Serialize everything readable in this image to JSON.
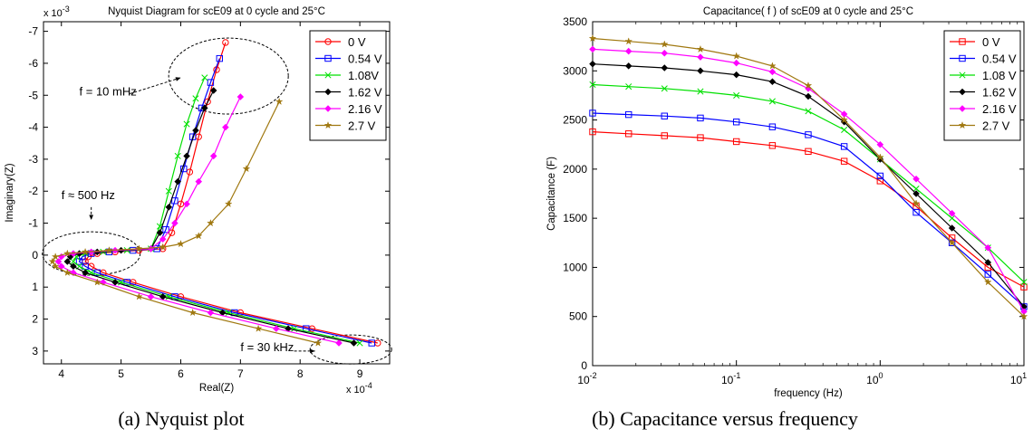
{
  "captions": [
    "(a) Nyquist plot",
    "(b) Capacitance versus frequency"
  ],
  "chart_data": [
    {
      "type": "line",
      "title": "Nyquist Diagram for scE09 at 0 cycle and 25°C",
      "xlabel": "Real(Z)",
      "ylabel": "Imaginary(Z)",
      "x_multiplier": "x 10",
      "x_exponent": "-4",
      "y_multiplier": "x 10",
      "y_exponent": "-3",
      "xlim": [
        3.7,
        9.5
      ],
      "ylim": [
        3.4,
        -7.3
      ],
      "y_reversed": true,
      "xticks": [
        4,
        5,
        6,
        7,
        8,
        9
      ],
      "yticks": [
        3,
        2,
        1,
        0,
        -1,
        -2,
        -3,
        -4,
        -5,
        -6,
        -7
      ],
      "legend_position": "top-right",
      "annotations": [
        {
          "text": "f = 10 mHz",
          "x": 4.3,
          "y": -5.0,
          "arrow_to": [
            6.0,
            -5.5
          ]
        },
        {
          "text": "f ≈ 500 Hz",
          "x": 4.0,
          "y": -1.75,
          "arrow_to": [
            4.5,
            -1.15
          ]
        },
        {
          "text": "f = 30 kHz",
          "x": 7.0,
          "y": 3.0,
          "arrow_to": [
            8.25,
            3.0
          ]
        }
      ],
      "series": [
        {
          "name": "0 V",
          "color": "#ff0000",
          "marker": "circle",
          "x": [
            9.3,
            8.2,
            7.0,
            6.0,
            5.2,
            4.7,
            4.5,
            4.4,
            4.45,
            4.6,
            4.9,
            5.3,
            5.7,
            5.85,
            6.0,
            6.15,
            6.3,
            6.45,
            6.6,
            6.75
          ],
          "y": [
            2.75,
            2.3,
            1.8,
            1.3,
            0.85,
            0.55,
            0.35,
            0.2,
            0.05,
            -0.05,
            -0.1,
            -0.15,
            -0.2,
            -0.7,
            -1.6,
            -2.6,
            -3.7,
            -4.8,
            -5.8,
            -6.65
          ]
        },
        {
          "name": "0.54 V",
          "color": "#0000ff",
          "marker": "square",
          "x": [
            9.2,
            8.1,
            6.9,
            5.9,
            5.1,
            4.6,
            4.4,
            4.3,
            4.35,
            4.5,
            4.8,
            5.2,
            5.6,
            5.75,
            5.9,
            6.05,
            6.2,
            6.35,
            6.5,
            6.65
          ],
          "y": [
            2.75,
            2.3,
            1.8,
            1.3,
            0.85,
            0.55,
            0.35,
            0.2,
            0.05,
            -0.05,
            -0.1,
            -0.15,
            -0.2,
            -0.8,
            -1.7,
            -2.7,
            -3.7,
            -4.6,
            -5.4,
            -6.15
          ]
        },
        {
          "name": "1.08V",
          "color": "#00e000",
          "marker": "x",
          "x": [
            9.0,
            7.9,
            6.8,
            5.8,
            5.0,
            4.5,
            4.3,
            4.2,
            4.25,
            4.4,
            4.7,
            5.1,
            5.5,
            5.65,
            5.8,
            5.95,
            6.1,
            6.25,
            6.4
          ],
          "y": [
            2.75,
            2.3,
            1.8,
            1.3,
            0.85,
            0.55,
            0.35,
            0.2,
            0.05,
            -0.05,
            -0.1,
            -0.15,
            -0.2,
            -0.9,
            -2.0,
            -3.1,
            -4.1,
            -4.9,
            -5.55
          ]
        },
        {
          "name": "1.62 V",
          "color": "#000000",
          "marker": "diamond",
          "x": [
            8.9,
            7.8,
            6.7,
            5.7,
            4.9,
            4.4,
            4.2,
            4.1,
            4.15,
            4.3,
            4.6,
            5.0,
            5.5,
            5.65,
            5.8,
            5.95,
            6.1,
            6.25,
            6.4,
            6.55
          ],
          "y": [
            2.75,
            2.3,
            1.8,
            1.3,
            0.85,
            0.55,
            0.35,
            0.2,
            0.05,
            -0.05,
            -0.1,
            -0.15,
            -0.2,
            -0.7,
            -1.5,
            -2.3,
            -3.1,
            -3.9,
            -4.6,
            -5.15
          ]
        },
        {
          "name": "2.16 V",
          "color": "#ff00ff",
          "marker": "diamond",
          "x": [
            8.65,
            7.6,
            6.5,
            5.5,
            4.7,
            4.2,
            4.0,
            3.95,
            4.0,
            4.2,
            4.5,
            4.9,
            5.5,
            5.7,
            5.9,
            6.1,
            6.3,
            6.55,
            6.75,
            7.0
          ],
          "y": [
            2.75,
            2.3,
            1.8,
            1.3,
            0.85,
            0.55,
            0.35,
            0.2,
            0.05,
            -0.05,
            -0.1,
            -0.15,
            -0.2,
            -0.5,
            -1.0,
            -1.6,
            -2.3,
            -3.1,
            -4.0,
            -4.95
          ]
        },
        {
          "name": "2.7 V",
          "color": "#a07810",
          "marker": "star",
          "x": [
            8.3,
            7.3,
            6.2,
            5.3,
            4.6,
            4.1,
            3.9,
            3.85,
            3.9,
            4.1,
            4.4,
            4.8,
            5.3,
            5.7,
            6.0,
            6.3,
            6.5,
            6.8,
            7.1,
            7.65
          ],
          "y": [
            2.75,
            2.3,
            1.8,
            1.3,
            0.85,
            0.55,
            0.35,
            0.2,
            0.05,
            -0.05,
            -0.1,
            -0.15,
            -0.2,
            -0.25,
            -0.35,
            -0.6,
            -1.0,
            -1.6,
            -2.7,
            -4.8
          ]
        }
      ]
    },
    {
      "type": "line",
      "title": "Capacitance( f ) of scE09 at 0 cycle and 25°C",
      "xlabel": "frequency (Hz)",
      "ylabel": "Capacitance (F)",
      "x_scale": "log",
      "xlim": [
        0.01,
        10
      ],
      "ylim": [
        0,
        3500
      ],
      "xticks": [
        0.01,
        0.1,
        1,
        10
      ],
      "xtick_labels": [
        {
          "base": "10",
          "exp": "-2"
        },
        {
          "base": "10",
          "exp": "-1"
        },
        {
          "base": "10",
          "exp": "0"
        },
        {
          "base": "10",
          "exp": "1"
        }
      ],
      "yticks": [
        0,
        500,
        1000,
        1500,
        2000,
        2500,
        3000,
        3500
      ],
      "legend_position": "top-right",
      "series": [
        {
          "name": "0 V",
          "color": "#ff0000",
          "marker": "square",
          "x": [
            0.01,
            0.0178,
            0.0316,
            0.0562,
            0.1,
            0.178,
            0.316,
            0.562,
            1.0,
            1.78,
            3.16,
            5.62,
            10
          ],
          "y": [
            2380,
            2360,
            2340,
            2320,
            2280,
            2240,
            2180,
            2080,
            1880,
            1620,
            1300,
            1000,
            800
          ]
        },
        {
          "name": "0.54 V",
          "color": "#0000ff",
          "marker": "square",
          "x": [
            0.01,
            0.0178,
            0.0316,
            0.0562,
            0.1,
            0.178,
            0.316,
            0.562,
            1.0,
            1.78,
            3.16,
            5.62,
            10
          ],
          "y": [
            2570,
            2555,
            2540,
            2520,
            2480,
            2430,
            2350,
            2230,
            1930,
            1560,
            1250,
            930,
            600
          ]
        },
        {
          "name": "1.08 V",
          "color": "#00e000",
          "marker": "x",
          "x": [
            0.01,
            0.0178,
            0.0316,
            0.0562,
            0.1,
            0.178,
            0.316,
            0.562,
            1.0,
            1.78,
            3.16,
            5.62,
            10
          ],
          "y": [
            2860,
            2840,
            2820,
            2790,
            2750,
            2690,
            2590,
            2400,
            2100,
            1800,
            1500,
            1200,
            850
          ]
        },
        {
          "name": "1.62 V",
          "color": "#000000",
          "marker": "diamond",
          "x": [
            0.01,
            0.0178,
            0.0316,
            0.0562,
            0.1,
            0.178,
            0.316,
            0.562,
            1.0,
            1.78,
            3.16,
            5.62,
            10
          ],
          "y": [
            3070,
            3050,
            3030,
            3000,
            2960,
            2890,
            2740,
            2480,
            2100,
            1750,
            1400,
            1050,
            600
          ]
        },
        {
          "name": "2.16 V",
          "color": "#ff00ff",
          "marker": "diamond",
          "x": [
            0.01,
            0.0178,
            0.0316,
            0.0562,
            0.1,
            0.178,
            0.316,
            0.562,
            1.0,
            1.78,
            3.16,
            5.62,
            10
          ],
          "y": [
            3220,
            3200,
            3180,
            3140,
            3080,
            2990,
            2820,
            2560,
            2250,
            1900,
            1550,
            1200,
            550
          ]
        },
        {
          "name": "2.7 V",
          "color": "#a07810",
          "marker": "star",
          "x": [
            0.01,
            0.0178,
            0.0316,
            0.0562,
            0.1,
            0.178,
            0.316,
            0.562,
            1.0,
            1.78,
            3.16,
            5.62,
            10
          ],
          "y": [
            3330,
            3300,
            3270,
            3220,
            3150,
            3050,
            2850,
            2500,
            2120,
            1650,
            1250,
            850,
            500
          ]
        }
      ]
    }
  ]
}
